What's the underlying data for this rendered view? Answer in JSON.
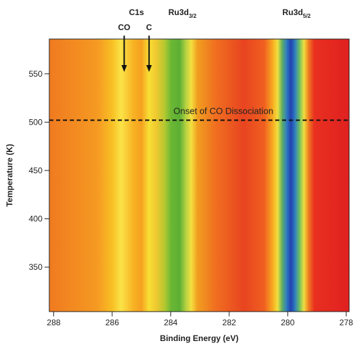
{
  "chart_data": {
    "type": "heatmap",
    "x_label": "Binding Energy (eV)",
    "y_label": "Temperature (K)",
    "xlim": [
      288.15,
      277.9
    ],
    "ylim": [
      304,
      586
    ],
    "xticks": [
      288,
      286,
      284,
      282,
      280,
      278
    ],
    "yticks": [
      350,
      400,
      450,
      500,
      550
    ],
    "profile": {
      "x": [
        288.15,
        286.5,
        286.0,
        285.7,
        285.3,
        285.0,
        284.75,
        284.5,
        284.2,
        284.0,
        283.7,
        283.5,
        283.3,
        283.1,
        282.5,
        281.5,
        280.8,
        280.5,
        280.35,
        280.2,
        280.05,
        279.9,
        279.75,
        279.6,
        279.45,
        279.3,
        279.1,
        277.9
      ],
      "color": [
        "#f07a20",
        "#f59a22",
        "#f8c024",
        "#fae448",
        "#f8b424",
        "#f5a020",
        "#f8e034",
        "#f0c830",
        "#b0c830",
        "#6cb834",
        "#5cae34",
        "#b0d040",
        "#f6e040",
        "#f0a020",
        "#f07020",
        "#e84420",
        "#f06020",
        "#f8b020",
        "#f0e040",
        "#60b060",
        "#3080c0",
        "#2040b0",
        "#3080c0",
        "#70c060",
        "#f0e040",
        "#f08020",
        "#e83020",
        "#e02020"
      ]
    },
    "onset": {
      "y": 502,
      "label": "Onset of CO Dissociation",
      "label_x": 282.2
    },
    "arrows": [
      {
        "label": "CO",
        "x": 285.59
      },
      {
        "label": "C",
        "x": 284.74
      }
    ],
    "group_label": {
      "text": "C1s",
      "x": 285.17
    },
    "peak_labels": [
      {
        "text": "Ru3d",
        "sub": "3/2",
        "x": 283.6
      },
      {
        "text": "Ru3d",
        "sub": "5/2",
        "x": 279.7
      }
    ]
  }
}
